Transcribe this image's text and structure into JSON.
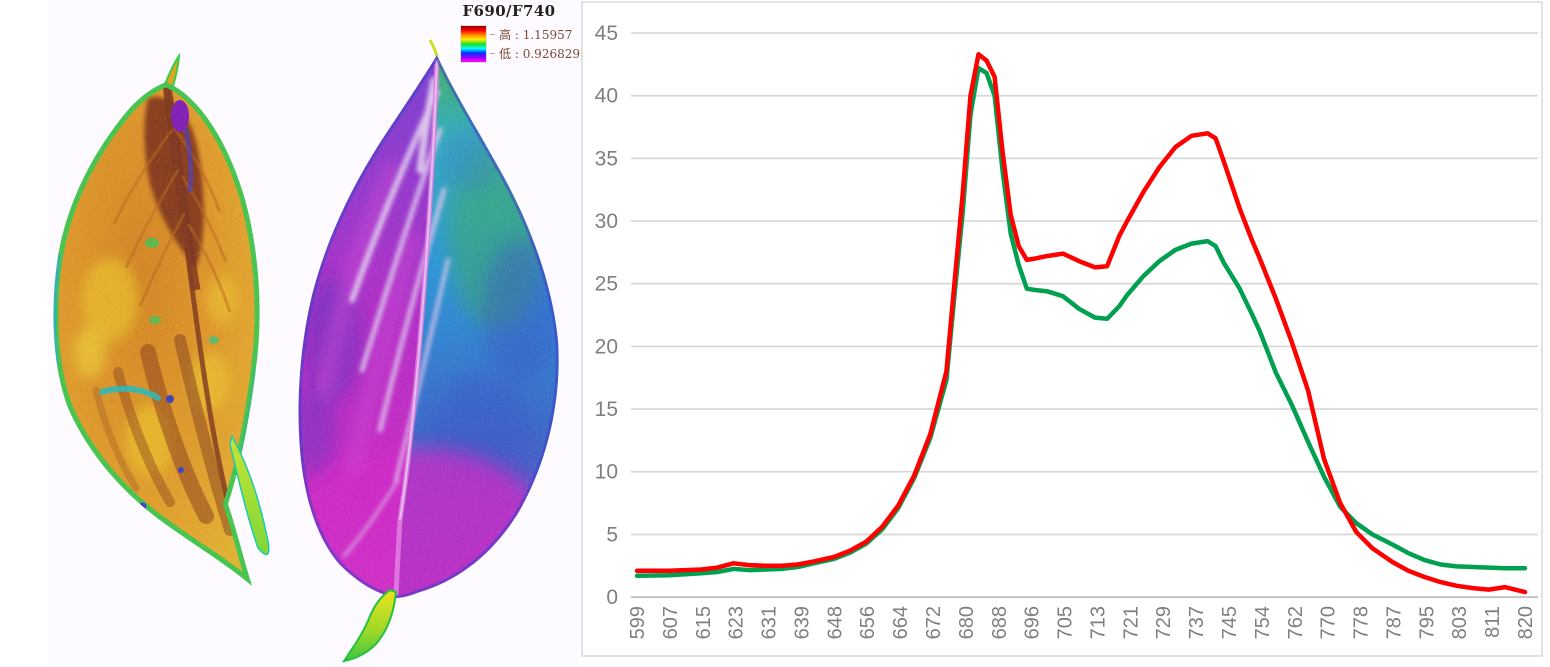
{
  "left_panel": {
    "legend": {
      "title": "F690/F740",
      "high_label": "高 : 1.15957",
      "low_label": "低 : 0.926829",
      "high_value": "1.15957",
      "low_value": "0.926829",
      "colorbar_stops": [
        "#8b0000",
        "#ff0000",
        "#ff8c00",
        "#ffee00",
        "#22dd22",
        "#00ffff",
        "#0033ff",
        "#9900ff",
        "#ff00ff"
      ]
    },
    "images": [
      {
        "name": "leaf-sample-1",
        "palette": [
          "#e89410",
          "#ffd900",
          "#7a2404",
          "#33e048",
          "#22d0e0"
        ]
      },
      {
        "name": "leaf-sample-2",
        "palette": [
          "#cc1ecf",
          "#7b3ad8",
          "#18b2e2",
          "#39d45a",
          "#ffffff"
        ]
      }
    ]
  },
  "chart_data": {
    "type": "line",
    "title": "",
    "xlabel": "",
    "ylabel": "",
    "x": [
      599,
      603,
      607,
      611,
      615,
      619,
      623,
      627,
      631,
      635,
      639,
      643,
      648,
      652,
      656,
      660,
      664,
      668,
      672,
      676,
      678,
      680,
      682,
      684,
      686,
      688,
      690,
      692,
      694,
      696,
      698,
      701,
      705,
      709,
      713,
      716,
      719,
      721,
      725,
      729,
      733,
      737,
      741,
      743,
      745,
      749,
      752,
      754,
      758,
      762,
      766,
      770,
      774,
      778,
      782,
      787,
      791,
      795,
      799,
      803,
      807,
      811,
      815,
      820
    ],
    "series": [
      {
        "name": "red",
        "color": "#FF0000",
        "values": [
          2.1,
          2.1,
          2.1,
          2.15,
          2.2,
          2.35,
          2.7,
          2.55,
          2.5,
          2.5,
          2.6,
          2.85,
          3.2,
          3.7,
          4.4,
          5.6,
          7.3,
          9.7,
          13.0,
          18.0,
          25.0,
          32.0,
          40.0,
          43.3,
          42.8,
          41.5,
          35.5,
          30.5,
          28.0,
          26.9,
          27.0,
          27.2,
          27.4,
          26.8,
          26.3,
          26.4,
          28.8,
          30.0,
          32.3,
          34.3,
          35.9,
          36.8,
          37.0,
          36.6,
          34.8,
          31.0,
          28.5,
          27.0,
          23.8,
          20.3,
          16.5,
          11.0,
          7.5,
          5.2,
          3.9,
          2.8,
          2.1,
          1.6,
          1.2,
          0.9,
          0.72,
          0.6,
          0.8,
          0.4
        ]
      },
      {
        "name": "green",
        "color": "#00A050",
        "values": [
          1.7,
          1.72,
          1.75,
          1.82,
          1.9,
          2.0,
          2.25,
          2.15,
          2.2,
          2.25,
          2.4,
          2.7,
          3.05,
          3.55,
          4.25,
          5.4,
          7.1,
          9.5,
          12.7,
          17.3,
          24.0,
          30.5,
          38.5,
          42.2,
          41.8,
          40.0,
          34.0,
          29.0,
          26.5,
          24.6,
          24.5,
          24.4,
          24.0,
          23.0,
          22.3,
          22.2,
          23.2,
          24.1,
          25.6,
          26.8,
          27.7,
          28.2,
          28.4,
          28.0,
          26.7,
          24.6,
          22.6,
          21.2,
          17.9,
          15.3,
          12.4,
          9.6,
          7.2,
          5.9,
          5.0,
          4.2,
          3.5,
          2.95,
          2.6,
          2.45,
          2.4,
          2.35,
          2.3,
          2.3
        ]
      }
    ],
    "x_tick_labels": [
      "599",
      "607",
      "615",
      "623",
      "631",
      "639",
      "648",
      "656",
      "664",
      "672",
      "680",
      "688",
      "696",
      "705",
      "713",
      "721",
      "729",
      "737",
      "745",
      "754",
      "762",
      "770",
      "778",
      "787",
      "795",
      "803",
      "811",
      "820"
    ],
    "y_ticks": [
      0,
      5,
      10,
      15,
      20,
      25,
      30,
      35,
      40,
      45
    ],
    "ylim": [
      0,
      45
    ],
    "grid": true,
    "legend_position": "none",
    "grid_color": "#d9d9d9",
    "axis_line_color": "#c3c3c3",
    "tick_label_color": "#7f7f7f"
  }
}
